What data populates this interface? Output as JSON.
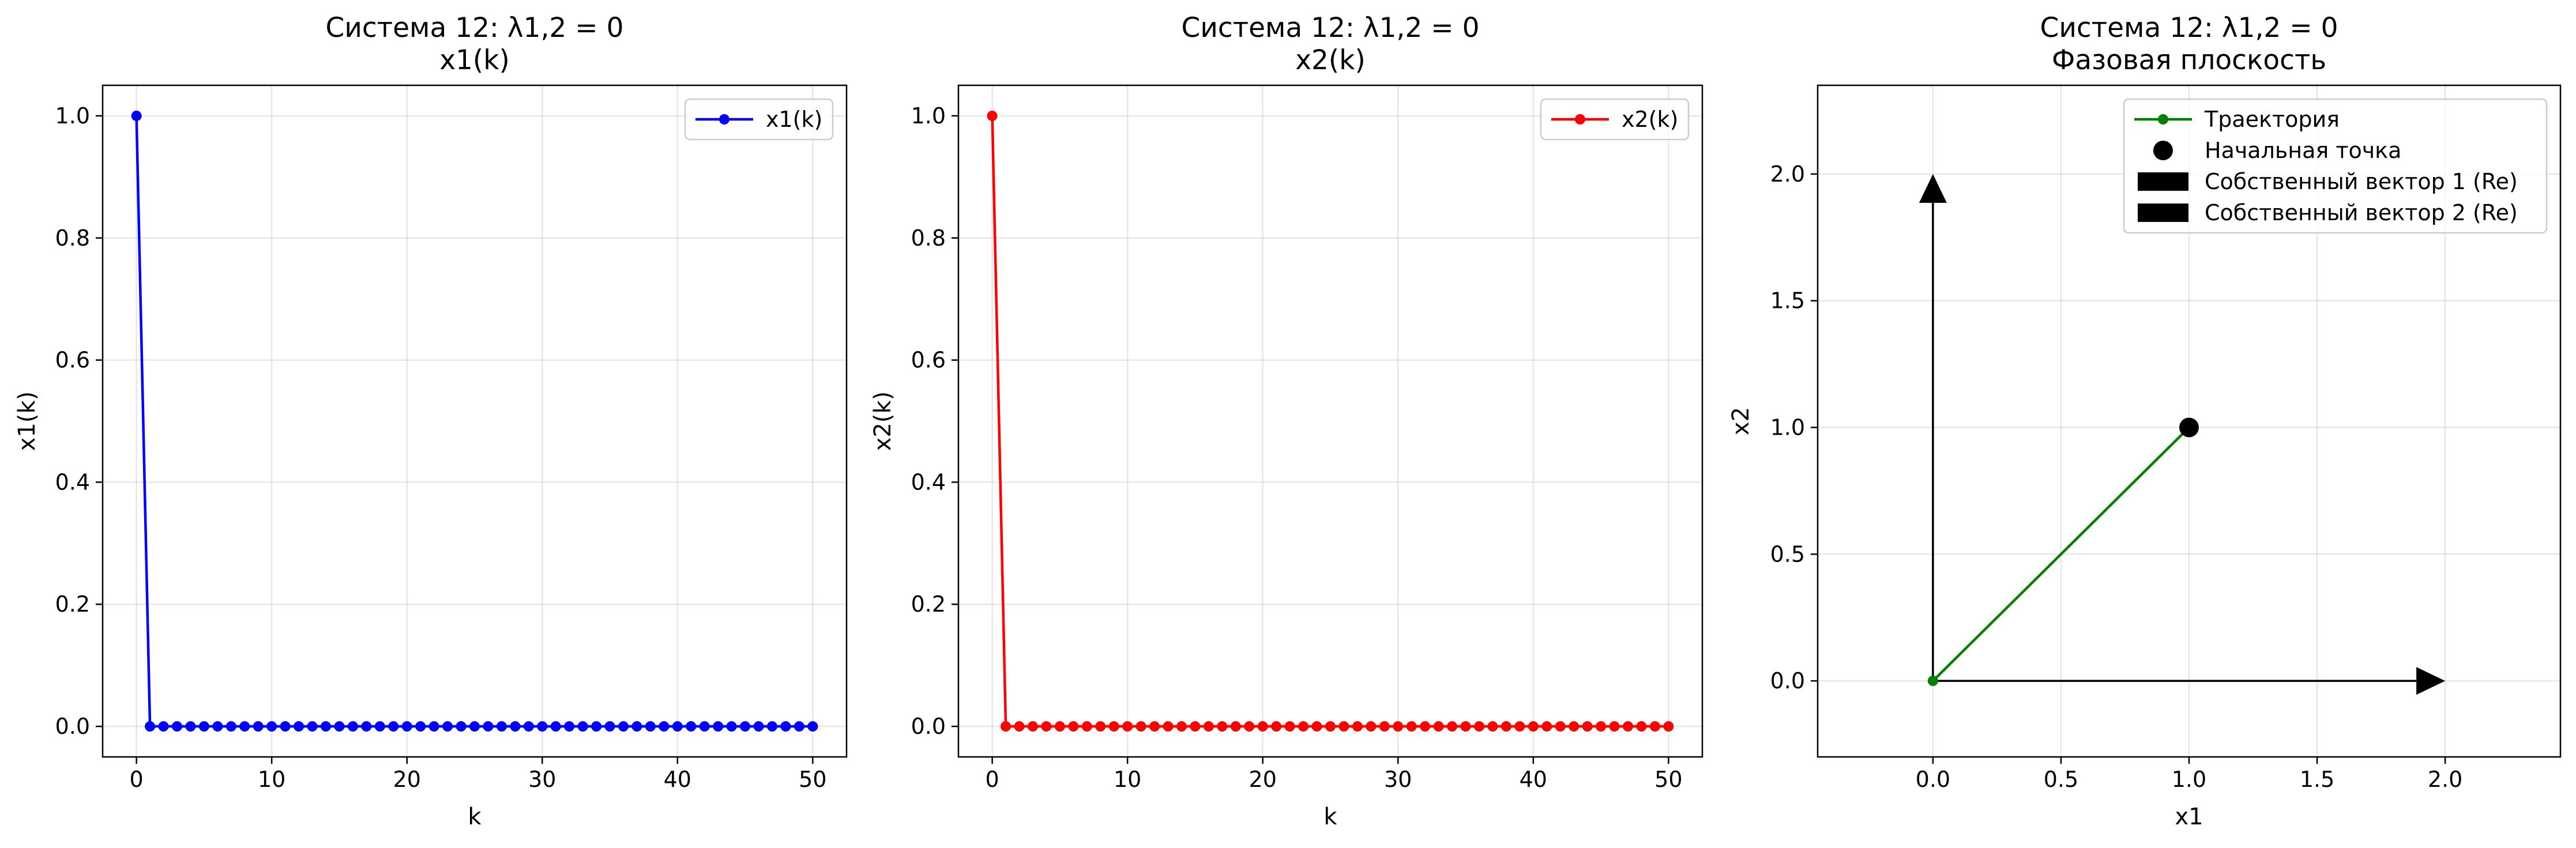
{
  "chart_data": [
    {
      "type": "line",
      "title": "Система 12: λ1,2 = 0",
      "subtitle": "x1(k)",
      "xlabel": "k",
      "ylabel": "x1(k)",
      "xlim": [
        -2.5,
        52.5
      ],
      "ylim": [
        -0.05,
        1.05
      ],
      "xticks": [
        "0",
        "10",
        "20",
        "30",
        "40",
        "50"
      ],
      "yticks": [
        "0.0",
        "0.2",
        "0.4",
        "0.6",
        "0.8",
        "1.0"
      ],
      "grid": true,
      "legend_position": "top-right",
      "series": [
        {
          "name": "x1(k)",
          "color": "#0000ff",
          "marker": "circle",
          "x": [
            0,
            1,
            2,
            3,
            4,
            5,
            6,
            7,
            8,
            9,
            10,
            11,
            12,
            13,
            14,
            15,
            16,
            17,
            18,
            19,
            20,
            21,
            22,
            23,
            24,
            25,
            26,
            27,
            28,
            29,
            30,
            31,
            32,
            33,
            34,
            35,
            36,
            37,
            38,
            39,
            40,
            41,
            42,
            43,
            44,
            45,
            46,
            47,
            48,
            49,
            50
          ],
          "values": [
            1,
            0,
            0,
            0,
            0,
            0,
            0,
            0,
            0,
            0,
            0,
            0,
            0,
            0,
            0,
            0,
            0,
            0,
            0,
            0,
            0,
            0,
            0,
            0,
            0,
            0,
            0,
            0,
            0,
            0,
            0,
            0,
            0,
            0,
            0,
            0,
            0,
            0,
            0,
            0,
            0,
            0,
            0,
            0,
            0,
            0,
            0,
            0,
            0,
            0,
            0
          ]
        }
      ]
    },
    {
      "type": "line",
      "title": "Система 12: λ1,2 = 0",
      "subtitle": "x2(k)",
      "xlabel": "k",
      "ylabel": "x2(k)",
      "xlim": [
        -2.5,
        52.5
      ],
      "ylim": [
        -0.05,
        1.05
      ],
      "xticks": [
        "0",
        "10",
        "20",
        "30",
        "40",
        "50"
      ],
      "yticks": [
        "0.0",
        "0.2",
        "0.4",
        "0.6",
        "0.8",
        "1.0"
      ],
      "grid": true,
      "legend_position": "top-right",
      "series": [
        {
          "name": "x2(k)",
          "color": "#ff0000",
          "marker": "circle",
          "x": [
            0,
            1,
            2,
            3,
            4,
            5,
            6,
            7,
            8,
            9,
            10,
            11,
            12,
            13,
            14,
            15,
            16,
            17,
            18,
            19,
            20,
            21,
            22,
            23,
            24,
            25,
            26,
            27,
            28,
            29,
            30,
            31,
            32,
            33,
            34,
            35,
            36,
            37,
            38,
            39,
            40,
            41,
            42,
            43,
            44,
            45,
            46,
            47,
            48,
            49,
            50
          ],
          "values": [
            1,
            0,
            0,
            0,
            0,
            0,
            0,
            0,
            0,
            0,
            0,
            0,
            0,
            0,
            0,
            0,
            0,
            0,
            0,
            0,
            0,
            0,
            0,
            0,
            0,
            0,
            0,
            0,
            0,
            0,
            0,
            0,
            0,
            0,
            0,
            0,
            0,
            0,
            0,
            0,
            0,
            0,
            0,
            0,
            0,
            0,
            0,
            0,
            0,
            0,
            0
          ]
        }
      ]
    },
    {
      "type": "line",
      "title": "Система 12: λ1,2 = 0",
      "subtitle": "Фазовая плоскость",
      "xlabel": "x1",
      "ylabel": "x2",
      "xlim": [
        -0.45,
        2.45
      ],
      "ylim": [
        -0.3,
        2.35
      ],
      "xticks": [
        "0.0",
        "0.5",
        "1.0",
        "1.5",
        "2.0"
      ],
      "yticks": [
        "0.0",
        "0.5",
        "1.0",
        "1.5",
        "2.0"
      ],
      "grid": true,
      "legend_position": "top-right",
      "series": [
        {
          "name": "Траектория",
          "color": "#008000",
          "marker": "circle",
          "x": [
            1,
            0
          ],
          "values": [
            1,
            0
          ]
        }
      ],
      "start_point": {
        "name": "Начальная точка",
        "x": 1,
        "y": 1,
        "color": "#000000"
      },
      "eigenvectors": [
        {
          "name": "Собственный вектор 1 (Re)",
          "x0": 0,
          "y0": 0,
          "dx": 2,
          "dy": 0,
          "color": "#000000"
        },
        {
          "name": "Собственный вектор 2 (Re)",
          "x0": 0,
          "y0": 0,
          "dx": 0,
          "dy": 2,
          "color": "#000000"
        }
      ]
    }
  ]
}
